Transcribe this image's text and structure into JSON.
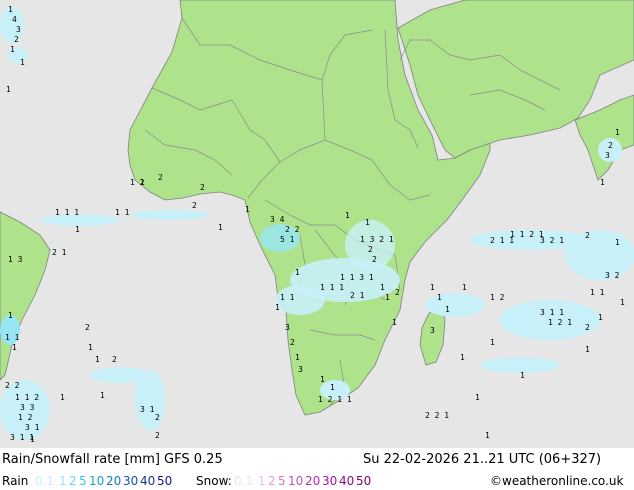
{
  "header": {
    "title": "Rain/Snowfall rate [mm] GFS 0.25",
    "datetime": "Su 22-02-2026 21..21 UTC (06+327)"
  },
  "legend": {
    "rain_label": "Rain",
    "snow_label": "Snow:",
    "rain_values": [
      {
        "text": "0.1",
        "color": "#c8f0f8"
      },
      {
        "text": "1",
        "color": "#96e6f5"
      },
      {
        "text": "2",
        "color": "#64dcf0"
      },
      {
        "text": "5",
        "color": "#32c8eb"
      },
      {
        "text": "10",
        "color": "#14a0dc"
      },
      {
        "text": "20",
        "color": "#1478c8"
      },
      {
        "text": "30",
        "color": "#1450b4"
      },
      {
        "text": "40",
        "color": "#1432a0"
      },
      {
        "text": "50",
        "color": "#14148c"
      }
    ],
    "snow_values": [
      {
        "text": "0.1",
        "color": "#f5dcf5"
      },
      {
        "text": "1",
        "color": "#ebbeeb"
      },
      {
        "text": "2",
        "color": "#e19be1"
      },
      {
        "text": "5",
        "color": "#d278d2"
      },
      {
        "text": "10",
        "color": "#c350c3"
      },
      {
        "text": "20",
        "color": "#b42db4"
      },
      {
        "text": "30",
        "color": "#a014a0"
      },
      {
        "text": "40",
        "color": "#8c0a8c"
      },
      {
        "text": "50",
        "color": "#780078"
      }
    ],
    "credit": "©weatheronline.co.uk"
  },
  "colors": {
    "sea": "#e6e6e6",
    "land": "#aee38c",
    "precip_light": "#c8f0f8",
    "precip_mid": "#96e6f5"
  }
}
